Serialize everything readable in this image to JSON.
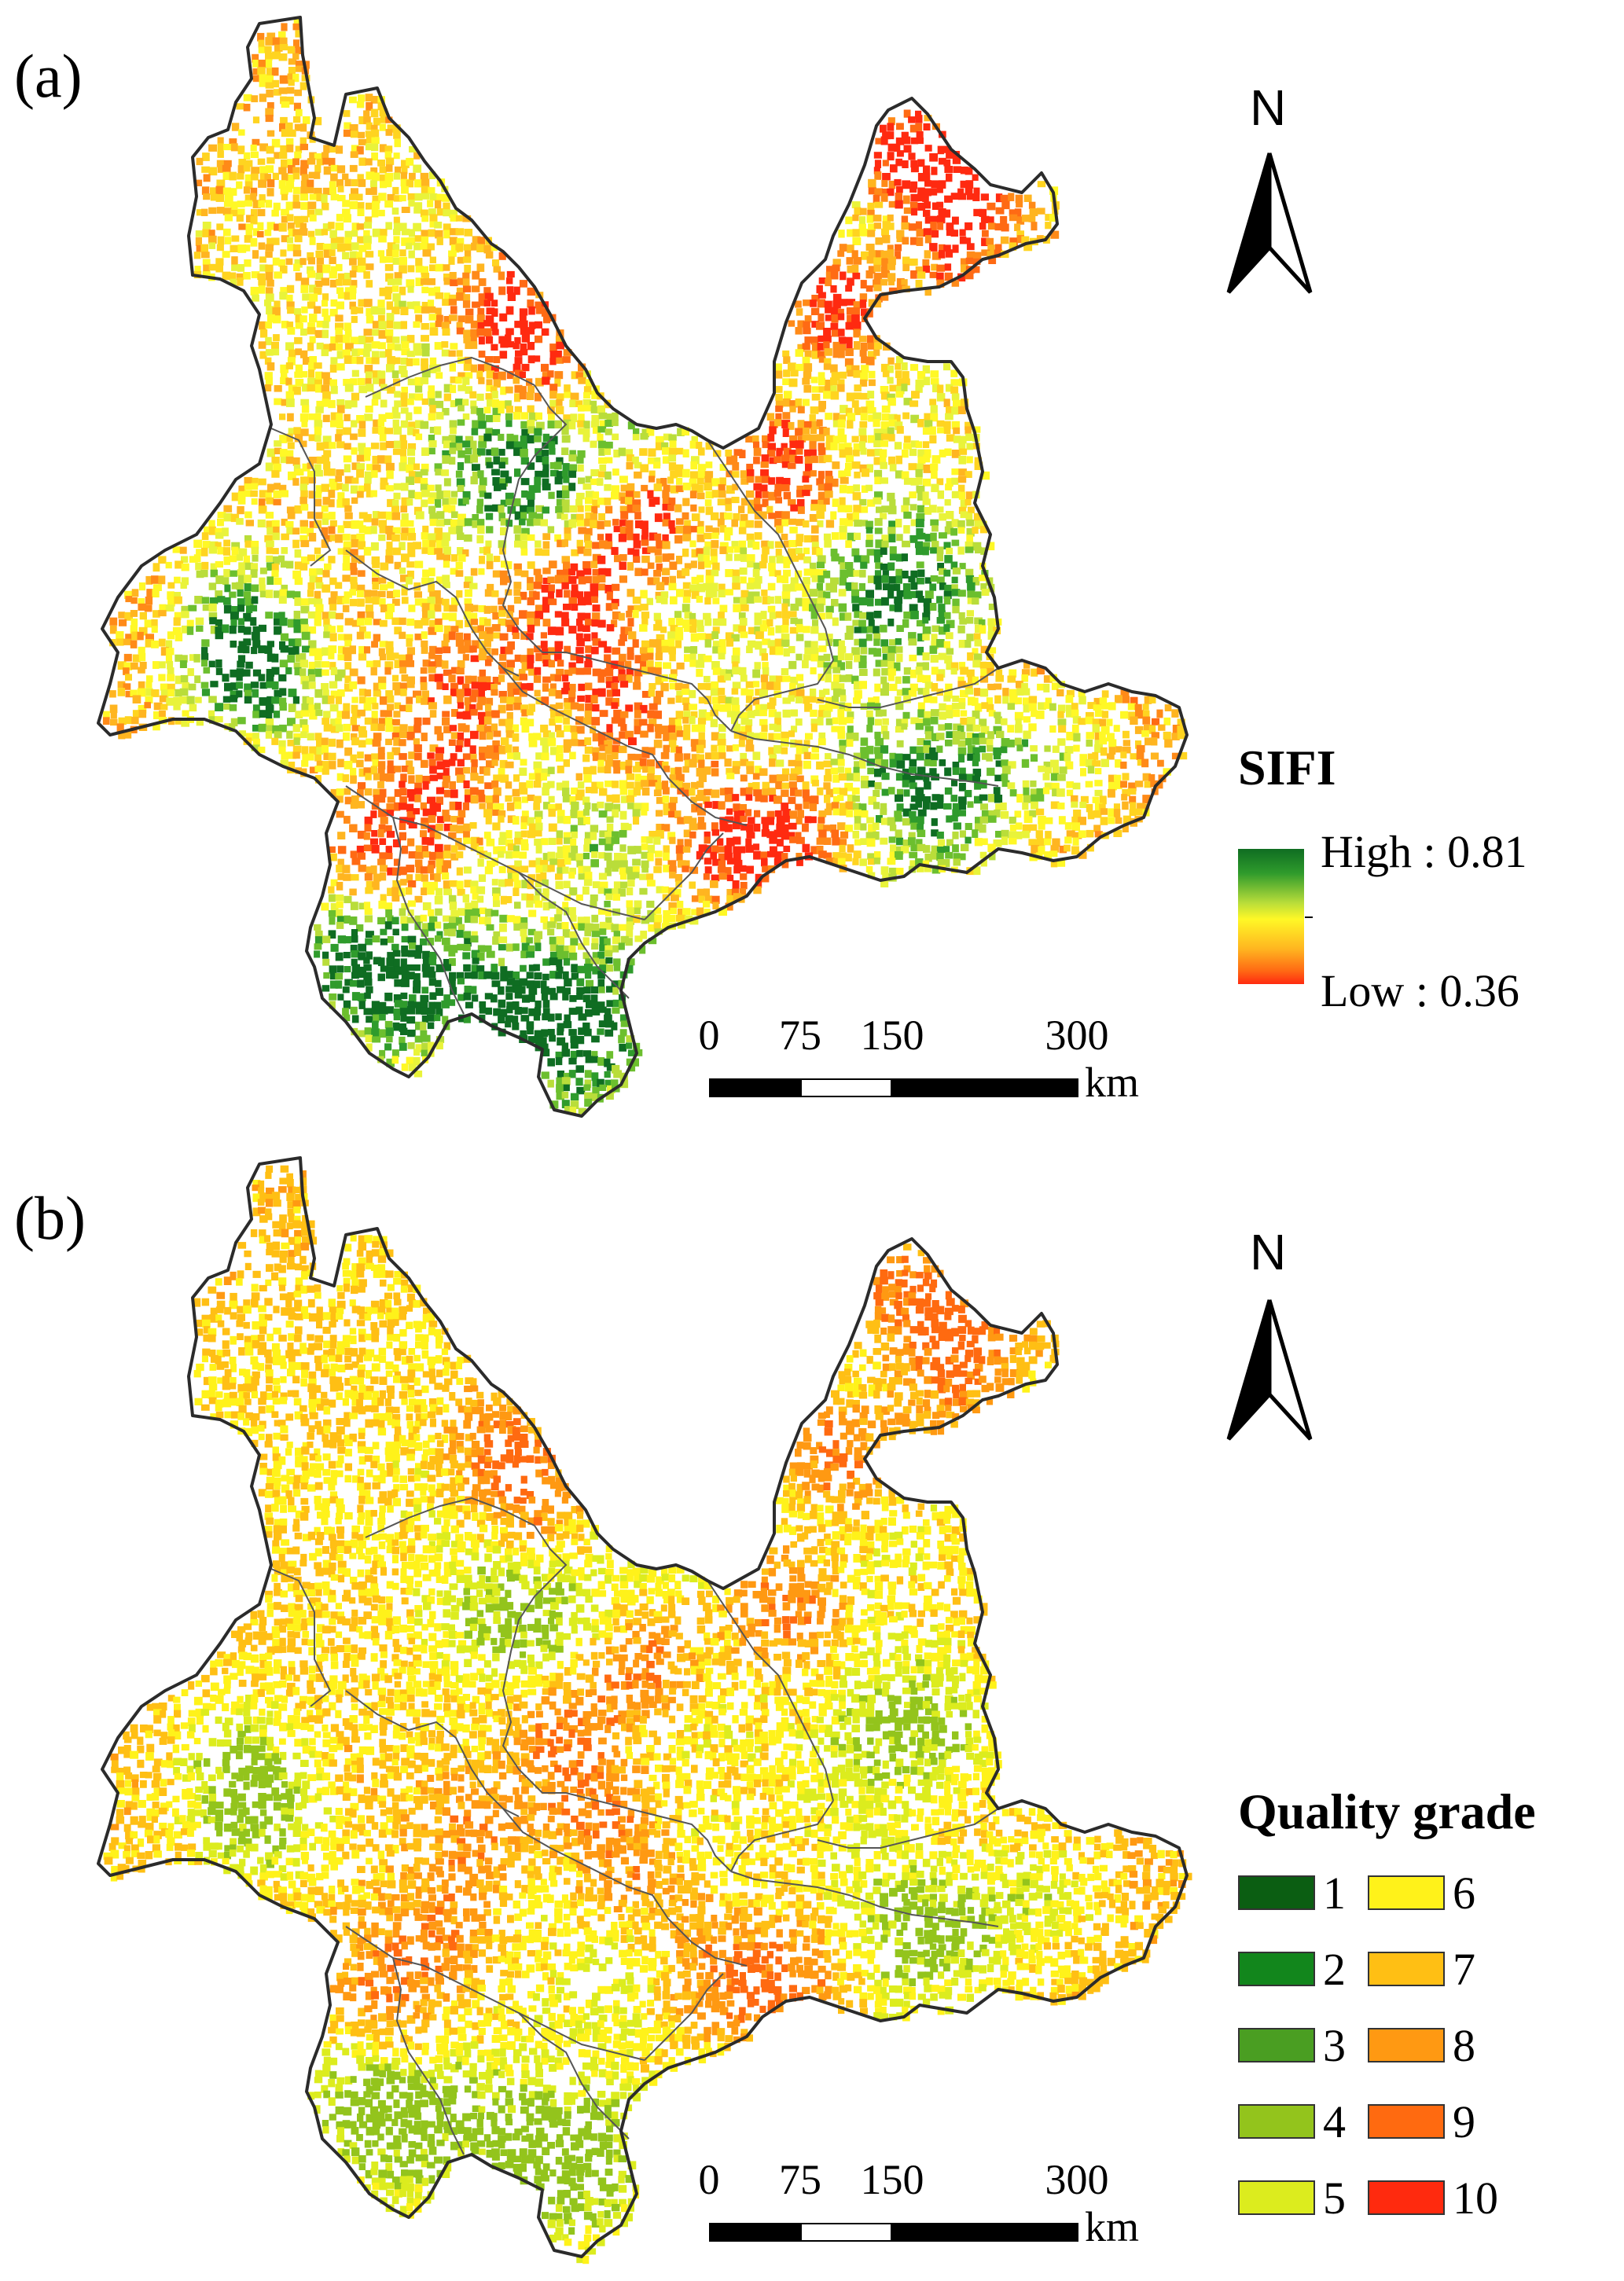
{
  "panel_a": {
    "label": "(a)",
    "north_label": "N",
    "legend": {
      "title": "SIFI",
      "high_label": "High : 0.81",
      "low_label": "Low : 0.36",
      "ramp_colors": [
        "#0f6d22",
        "#2f9b2c",
        "#b9dd3a",
        "#fff826",
        "#ffb520",
        "#ff6a14",
        "#ff2a10"
      ]
    },
    "scale": {
      "ticks": [
        "0",
        "75",
        "150",
        "300"
      ],
      "unit": "km"
    }
  },
  "panel_b": {
    "label": "(b)",
    "north_label": "N",
    "legend": {
      "title": "Quality grade",
      "grades": [
        {
          "label": "1",
          "color": "#0b5e12"
        },
        {
          "label": "2",
          "color": "#12861c"
        },
        {
          "label": "3",
          "color": "#4a9e22"
        },
        {
          "label": "4",
          "color": "#93c41c"
        },
        {
          "label": "5",
          "color": "#dcec1e"
        },
        {
          "label": "6",
          "color": "#fff21a"
        },
        {
          "label": "7",
          "color": "#ffbf14"
        },
        {
          "label": "8",
          "color": "#ff9912"
        },
        {
          "label": "9",
          "color": "#ff6a10"
        },
        {
          "label": "10",
          "color": "#ff2a0e"
        }
      ]
    },
    "scale": {
      "ticks": [
        "0",
        "75",
        "150",
        "300"
      ],
      "unit": "km"
    }
  },
  "style": {
    "boundary_color": "#2b2b2b",
    "background": "#ffffff"
  }
}
